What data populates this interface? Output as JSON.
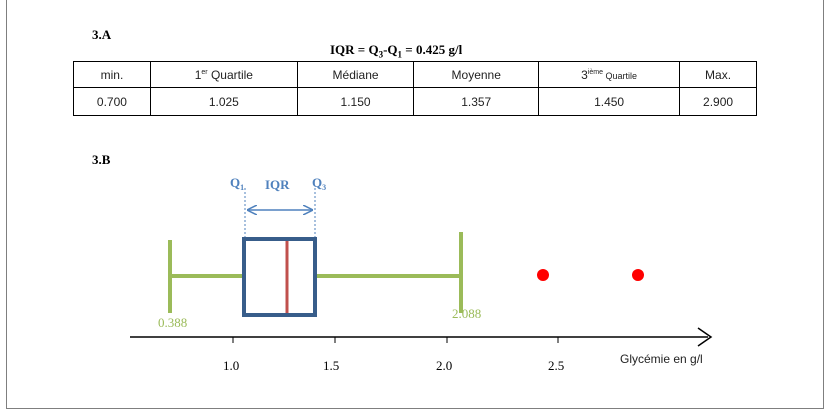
{
  "section_a": {
    "label": "3.A",
    "iqr": {
      "prefix": "IQR =  Q",
      "s3": "3",
      "mid": "-Q",
      "s1": "1",
      "suffix": " = 0.425 g/l"
    },
    "headers": {
      "min": "min.",
      "q1_num": "1",
      "q1_sup": "er",
      "q1_text": " Quartile",
      "median": "Médiane",
      "mean": "Moyenne",
      "q3_num": "3",
      "q3_sup": "ième",
      "q3_text": " Quartile",
      "max": "Max."
    },
    "values": [
      "0.700",
      "1.025",
      "1.150",
      "1.357",
      "1.450",
      "2.900"
    ]
  },
  "section_b": {
    "label": "3.B",
    "q1_label": "Q",
    "q1_sub": "1",
    "q3_label": "Q",
    "q3_sub": "3",
    "iqr_label": "IQR",
    "whisker_low_label": "0.388",
    "whisker_high_label": "2.088",
    "axis_title": "Glycémie en g/l",
    "colors": {
      "box": "#385d8a",
      "median": "#c0504d",
      "whisker": "#9bbb59",
      "outlier": "#ff0000",
      "q_label": "#4f81bd"
    }
  },
  "chart_data": {
    "type": "boxplot",
    "title": "",
    "xlabel": "Glycémie en g/l",
    "ticks": [
      1.0,
      1.5,
      2.0,
      2.5
    ],
    "tick_labels": [
      "1.0",
      "1.5",
      "2.0",
      "2.5"
    ],
    "min": 0.7,
    "q1": 1.025,
    "median": 1.15,
    "mean": 1.357,
    "q3": 1.45,
    "max": 2.9,
    "iqr": 0.425,
    "whisker_low": 0.388,
    "whisker_high": 2.088,
    "outliers": [
      2.45,
      2.9
    ]
  }
}
